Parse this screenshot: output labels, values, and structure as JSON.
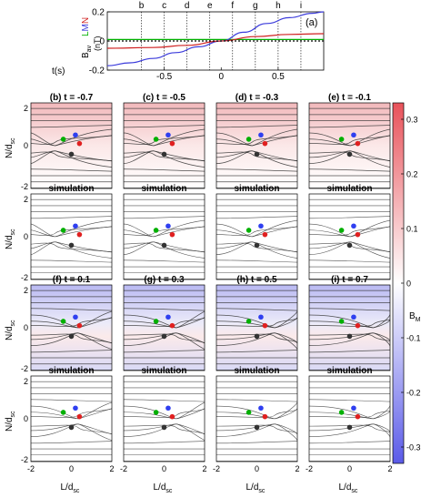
{
  "chart_data": [
    {
      "type": "line",
      "panel_label": "(a)",
      "xlabel": "t(s)",
      "ylabel_main": "B",
      "ylabel_sub": "av",
      "ylabel_components": [
        "L",
        "M",
        "N"
      ],
      "ylabel_unit": "(nT)",
      "xlim": [
        -1,
        0.9
      ],
      "ylim": [
        -0.2,
        0.2
      ],
      "yticks": [
        "0.2",
        "0",
        "-0.2"
      ],
      "xticks": [
        "-0.5",
        "0",
        "0.5"
      ],
      "time_markers": [
        {
          "label": "b",
          "t": -0.7
        },
        {
          "label": "c",
          "t": -0.5
        },
        {
          "label": "d",
          "t": -0.3
        },
        {
          "label": "e",
          "t": -0.1
        },
        {
          "label": "f",
          "t": 0.1
        },
        {
          "label": "g",
          "t": 0.3
        },
        {
          "label": "h",
          "t": 0.5
        },
        {
          "label": "i",
          "t": 0.7
        }
      ],
      "series": [
        {
          "component": "L",
          "color": "#00b000",
          "x": [
            -1,
            -0.5,
            0,
            0.5,
            0.9
          ],
          "y": [
            0.01,
            0.01,
            0.01,
            0.01,
            0.01
          ]
        },
        {
          "component": "M",
          "color": "#3b3bdb",
          "x": [
            -1,
            -0.8,
            -0.6,
            -0.4,
            -0.2,
            0,
            0.2,
            0.4,
            0.6,
            0.8,
            0.9
          ],
          "y": [
            -0.17,
            -0.15,
            -0.12,
            -0.08,
            -0.04,
            0.0,
            0.06,
            0.12,
            0.16,
            0.19,
            0.2
          ]
        },
        {
          "component": "N",
          "color": "#d02020",
          "x": [
            -1,
            -0.6,
            -0.3,
            0,
            0.3,
            0.6,
            0.9
          ],
          "y": [
            -0.05,
            -0.045,
            -0.03,
            0.0,
            0.03,
            0.045,
            0.05
          ]
        },
        {
          "component": "reference",
          "color": "#000000",
          "style": "dotted",
          "x": [
            -1,
            0.9
          ],
          "y": [
            0,
            0
          ]
        }
      ]
    },
    {
      "type": "streamline-grid",
      "ylabel_main": "N/d",
      "ylabel_sub": "sc",
      "xlabel_main": "L/d",
      "xlabel_sub": "sc",
      "xticks": [
        "-2",
        "0",
        "2"
      ],
      "yticks": [
        "2",
        "0",
        "-2"
      ],
      "xlim": [
        -2,
        2
      ],
      "ylim": [
        -2,
        2
      ],
      "row_titles": [
        "simulation",
        "simulation"
      ],
      "panels": [
        {
          "label": "(b) t = -0.7",
          "t": -0.7
        },
        {
          "label": "(c) t = -0.5",
          "t": -0.5
        },
        {
          "label": "(d) t = -0.3",
          "t": -0.3
        },
        {
          "label": "(e) t = -0.1",
          "t": -0.1
        },
        {
          "label": "(f) t = 0.1",
          "t": 0.1
        },
        {
          "label": "(g) t = 0.3",
          "t": 0.3
        },
        {
          "label": "(h) t = 0.5",
          "t": 0.5
        },
        {
          "label": "(i) t = 0.7",
          "t": 0.7
        }
      ],
      "spacecraft": [
        {
          "color": "#2f3ff0",
          "x": 0.2,
          "y": 0.5
        },
        {
          "color": "#00b000",
          "x": -0.4,
          "y": 0.3
        },
        {
          "color": "#e02020",
          "x": 0.4,
          "y": 0.1
        },
        {
          "color": "#333333",
          "x": 0.0,
          "y": -0.4
        }
      ]
    },
    {
      "type": "colorbar",
      "label_main": "B",
      "label_sub": "M",
      "range": [
        -0.33,
        0.33
      ],
      "ticks": [
        "0.3",
        "0.2",
        "0.1",
        "0",
        "-0.1",
        "-0.2",
        "-0.3"
      ],
      "color_positive": "#e8525a",
      "color_negative": "#5a5ae8"
    }
  ]
}
